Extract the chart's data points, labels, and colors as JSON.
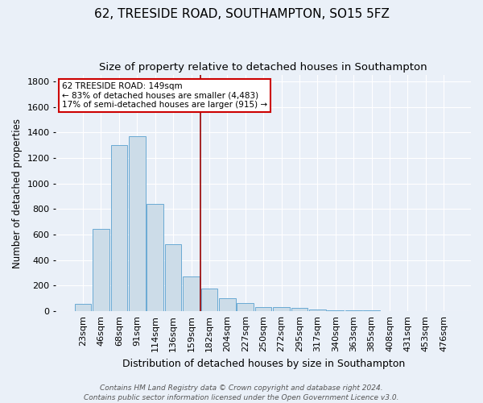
{
  "title": "62, TREESIDE ROAD, SOUTHAMPTON, SO15 5FZ",
  "subtitle": "Size of property relative to detached houses in Southampton",
  "xlabel": "Distribution of detached houses by size in Southampton",
  "ylabel": "Number of detached properties",
  "categories": [
    "23sqm",
    "46sqm",
    "68sqm",
    "91sqm",
    "114sqm",
    "136sqm",
    "159sqm",
    "182sqm",
    "204sqm",
    "227sqm",
    "250sqm",
    "272sqm",
    "295sqm",
    "317sqm",
    "340sqm",
    "363sqm",
    "385sqm",
    "408sqm",
    "431sqm",
    "453sqm",
    "476sqm"
  ],
  "values": [
    55,
    645,
    1300,
    1370,
    840,
    525,
    275,
    175,
    105,
    65,
    35,
    35,
    25,
    15,
    5,
    10,
    5,
    0,
    0,
    0,
    0
  ],
  "bar_color": "#ccdce8",
  "bar_edge_color": "#6aaad4",
  "background_color": "#eaf0f8",
  "grid_color": "#ffffff",
  "vline_x": 6.5,
  "vline_color": "#990000",
  "annotation_text": "62 TREESIDE ROAD: 149sqm\n← 83% of detached houses are smaller (4,483)\n17% of semi-detached houses are larger (915) →",
  "annotation_box_color": "#ffffff",
  "annotation_box_edge_color": "#cc0000",
  "footer_text": "Contains HM Land Registry data © Crown copyright and database right 2024.\nContains public sector information licensed under the Open Government Licence v3.0.",
  "ylim": [
    0,
    1850
  ],
  "title_fontsize": 11,
  "subtitle_fontsize": 9.5,
  "xlabel_fontsize": 9,
  "ylabel_fontsize": 8.5,
  "tick_fontsize": 8,
  "footer_fontsize": 6.5,
  "annotation_fontsize": 7.5
}
